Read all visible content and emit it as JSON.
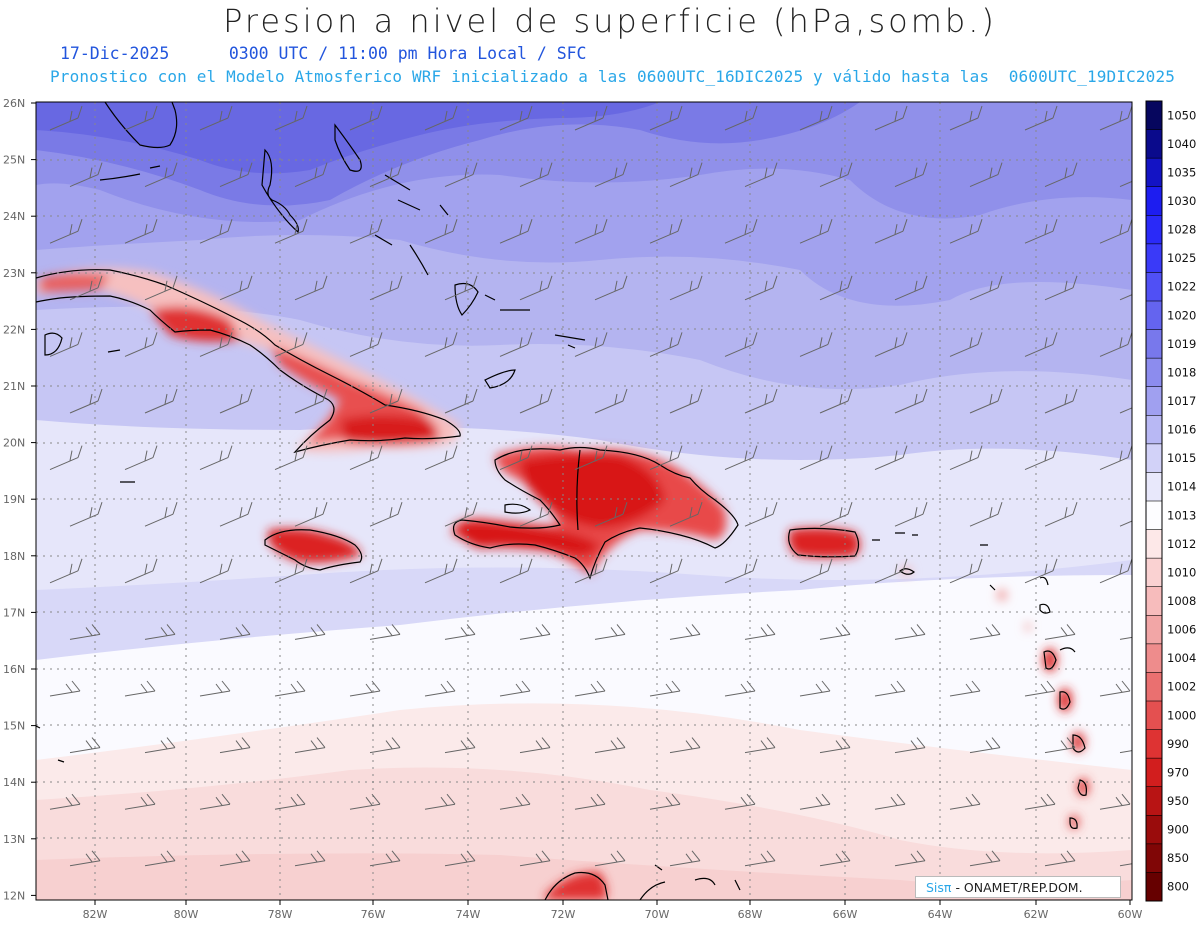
{
  "header": {
    "title": "Presion a nivel de superficie (hPa,somb.)",
    "subtitle_line1": "17-Dic-2025      0300 UTC / 11:00 pm Hora Local / SFC",
    "subtitle_line2": "Pronostico con el Modelo Atmosferico WRF inicializado a las 0600UTC_16DIC2025 y válido hasta las  0600UTC_19DIC2025"
  },
  "axes": {
    "lat_labels": [
      "26N",
      "25N",
      "24N",
      "23N",
      "22N",
      "21N",
      "20N",
      "19N",
      "18N",
      "17N",
      "16N",
      "15N",
      "14N",
      "13N",
      "12N"
    ],
    "lon_labels": [
      "82W",
      "80W",
      "78W",
      "76W",
      "74W",
      "72W",
      "70W",
      "68W",
      "66W",
      "64W",
      "62W",
      "60W"
    ]
  },
  "colorbar": {
    "labels": [
      "1050",
      "1040",
      "1035",
      "1030",
      "1028",
      "1025",
      "1022",
      "1020",
      "1019",
      "1018",
      "1017",
      "1016",
      "1015",
      "1014",
      "1013",
      "1012",
      "1010",
      "1008",
      "1006",
      "1004",
      "1002",
      "1000",
      "990",
      "970",
      "950",
      "900",
      "850",
      "800"
    ],
    "colors": [
      "#06065e",
      "#0a0a8c",
      "#1313c4",
      "#1d1df0",
      "#2a2af8",
      "#3a3af8",
      "#5050f5",
      "#6464ef",
      "#7878ec",
      "#8c8cee",
      "#a0a0f0",
      "#b8b8f4",
      "#d2d2f8",
      "#e8e8fb",
      "#fdfdff",
      "#fde8e8",
      "#fad2d2",
      "#f7bcbc",
      "#f2a6a6",
      "#ee8c8c",
      "#ea7070",
      "#e45050",
      "#de3333",
      "#d21e1e",
      "#b81414",
      "#9a0c0c",
      "#800606",
      "#660000"
    ]
  },
  "credit": {
    "sis": "Sisπ",
    "text": "- ONAMET/REP.DOM."
  }
}
